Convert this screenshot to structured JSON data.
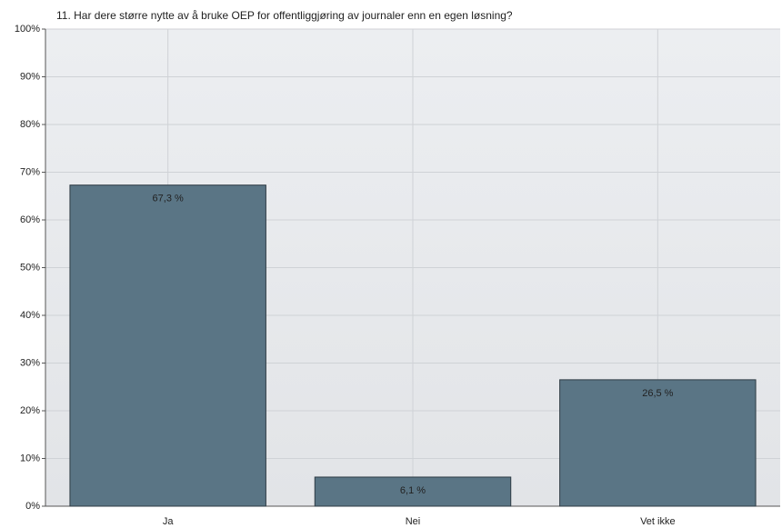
{
  "chart_data": {
    "type": "bar",
    "title": "11. Har dere større nytte av å bruke OEP for offentliggjøring av journaler enn en egen løsning?",
    "categories": [
      "Ja",
      "Nei",
      "Vet ikke"
    ],
    "values": [
      67.3,
      6.1,
      26.5
    ],
    "value_labels": [
      "67,3 %",
      "6,1 %",
      "26,5 %"
    ],
    "color": "#5a7585",
    "ylim": [
      0,
      100
    ],
    "yticks": [
      {
        "value": 0,
        "label": "0%"
      },
      {
        "value": 10,
        "label": "10%"
      },
      {
        "value": 20,
        "label": "20%"
      },
      {
        "value": 30,
        "label": "30%"
      },
      {
        "value": 40,
        "label": "40%"
      },
      {
        "value": 50,
        "label": "50%"
      },
      {
        "value": 60,
        "label": "60%"
      },
      {
        "value": 70,
        "label": "70%"
      },
      {
        "value": 80,
        "label": "80%"
      },
      {
        "value": 90,
        "label": "90%"
      },
      {
        "value": 100,
        "label": "100%"
      }
    ],
    "grid": true
  }
}
